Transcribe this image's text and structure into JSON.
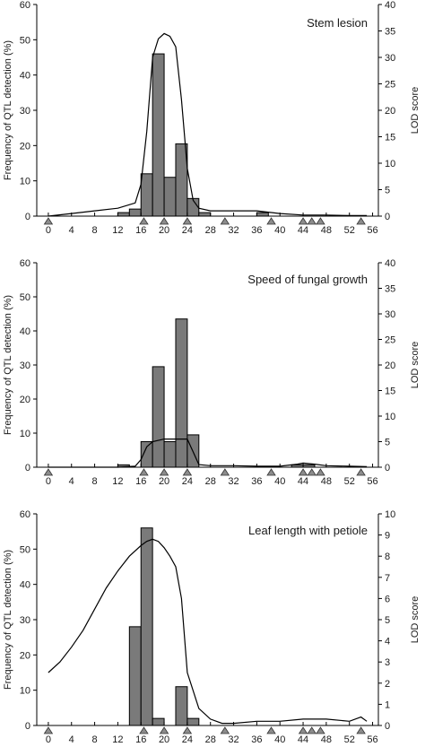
{
  "chart_data": [
    {
      "type": "bar",
      "title": "Stem lesion",
      "ylabel": "Frequency of QTL detection (%)",
      "y2label": "LOD score",
      "xlim": [
        -2,
        57
      ],
      "ylim": [
        0,
        60
      ],
      "y2lim": [
        0,
        40
      ],
      "xticks": [
        0,
        4,
        8,
        12,
        16,
        20,
        24,
        28,
        32,
        36,
        40,
        44,
        48,
        52,
        56
      ],
      "yticks": [
        0,
        10,
        20,
        30,
        40,
        50,
        60
      ],
      "y2ticks": [
        0,
        5,
        10,
        15,
        20,
        25,
        30,
        35,
        40
      ],
      "bin_width": 2,
      "bars": [
        {
          "x": 13,
          "value": 1
        },
        {
          "x": 15,
          "value": 2
        },
        {
          "x": 17,
          "value": 12
        },
        {
          "x": 19,
          "value": 46
        },
        {
          "x": 21,
          "value": 11
        },
        {
          "x": 23,
          "value": 20.5
        },
        {
          "x": 25,
          "value": 5
        },
        {
          "x": 27,
          "value": 1
        },
        {
          "x": 37,
          "value": 1
        }
      ],
      "lod_curve": {
        "x": [
          0,
          4,
          8,
          12,
          15,
          16,
          17,
          18,
          19,
          20,
          21,
          22,
          23,
          24,
          25,
          26,
          28,
          32,
          36,
          40,
          44,
          48,
          52,
          55
        ],
        "y": [
          0,
          0.5,
          1,
          1.5,
          2.5,
          6,
          16,
          30,
          33.5,
          34.5,
          34,
          32,
          22,
          9,
          3,
          1.5,
          1,
          1,
          1,
          0.5,
          0.2,
          0.2,
          0.1,
          0.1
        ]
      },
      "markers": [
        0,
        16.5,
        20,
        24,
        30.5,
        38.5,
        44,
        45.5,
        47,
        54
      ]
    },
    {
      "type": "bar",
      "title": "Speed of fungal growth",
      "ylabel": "Frequency of QTL detection (%)",
      "y2label": "LOD score",
      "xlim": [
        -2,
        57
      ],
      "ylim": [
        0,
        60
      ],
      "y2lim": [
        0,
        40
      ],
      "xticks": [
        0,
        4,
        8,
        12,
        16,
        20,
        24,
        28,
        32,
        36,
        40,
        44,
        48,
        52,
        56
      ],
      "yticks": [
        0,
        10,
        20,
        30,
        40,
        50,
        60
      ],
      "y2ticks": [
        0,
        5,
        10,
        15,
        20,
        25,
        30,
        35,
        40
      ],
      "bin_width": 2,
      "bars": [
        {
          "x": 13,
          "value": 0.7
        },
        {
          "x": 17,
          "value": 7.5
        },
        {
          "x": 19,
          "value": 29.5
        },
        {
          "x": 21,
          "value": 7.5
        },
        {
          "x": 23,
          "value": 43.5
        },
        {
          "x": 25,
          "value": 9.5
        },
        {
          "x": 43,
          "value": 0.7
        },
        {
          "x": 45,
          "value": 0.7
        }
      ],
      "lod_curve": {
        "x": [
          0,
          12,
          15,
          16,
          17,
          18,
          20,
          22,
          24,
          25,
          26,
          28,
          32,
          36,
          40,
          43,
          44,
          46,
          48,
          52,
          55
        ],
        "y": [
          0,
          0,
          0.2,
          1.5,
          4,
          5,
          5.5,
          5.5,
          5.5,
          3,
          0.5,
          0.3,
          0.3,
          0.2,
          0.2,
          0.6,
          0.8,
          0.6,
          0.3,
          0.2,
          0.1
        ]
      },
      "markers": [
        0,
        16.5,
        20,
        24,
        30.5,
        38.5,
        44,
        45.5,
        47,
        54
      ]
    },
    {
      "type": "bar",
      "title": "Leaf length with petiole",
      "ylabel": "Frequency of QTL detection (%)",
      "y2label": "LOD score",
      "xlim": [
        -2,
        57
      ],
      "ylim": [
        0,
        60
      ],
      "y2lim": [
        0,
        10
      ],
      "xticks": [
        0,
        4,
        8,
        12,
        16,
        20,
        24,
        28,
        32,
        36,
        40,
        44,
        48,
        52,
        56
      ],
      "yticks": [
        0,
        10,
        20,
        30,
        40,
        50,
        60
      ],
      "y2ticks": [
        0,
        1,
        2,
        3,
        4,
        5,
        6,
        7,
        8,
        9,
        10
      ],
      "bin_width": 2,
      "bars": [
        {
          "x": 15,
          "value": 28
        },
        {
          "x": 17,
          "value": 56
        },
        {
          "x": 19,
          "value": 2
        },
        {
          "x": 23,
          "value": 11
        },
        {
          "x": 25,
          "value": 2
        }
      ],
      "lod_curve": {
        "x": [
          0,
          2,
          4,
          6,
          8,
          10,
          12,
          14,
          16,
          17,
          18,
          19,
          20,
          21,
          22,
          23,
          24,
          26,
          28,
          30,
          32,
          36,
          40,
          44,
          48,
          52,
          54,
          55
        ],
        "y": [
          2.5,
          3,
          3.7,
          4.5,
          5.5,
          6.5,
          7.3,
          8,
          8.5,
          8.7,
          8.8,
          8.7,
          8.4,
          8,
          7.5,
          6,
          2.5,
          0.8,
          0.3,
          0.1,
          0.1,
          0.2,
          0.2,
          0.3,
          0.3,
          0.2,
          0.4,
          0.2
        ]
      },
      "markers": [
        0,
        16.5,
        20,
        24,
        30.5,
        38.5,
        44,
        45.5,
        47,
        54
      ]
    }
  ]
}
